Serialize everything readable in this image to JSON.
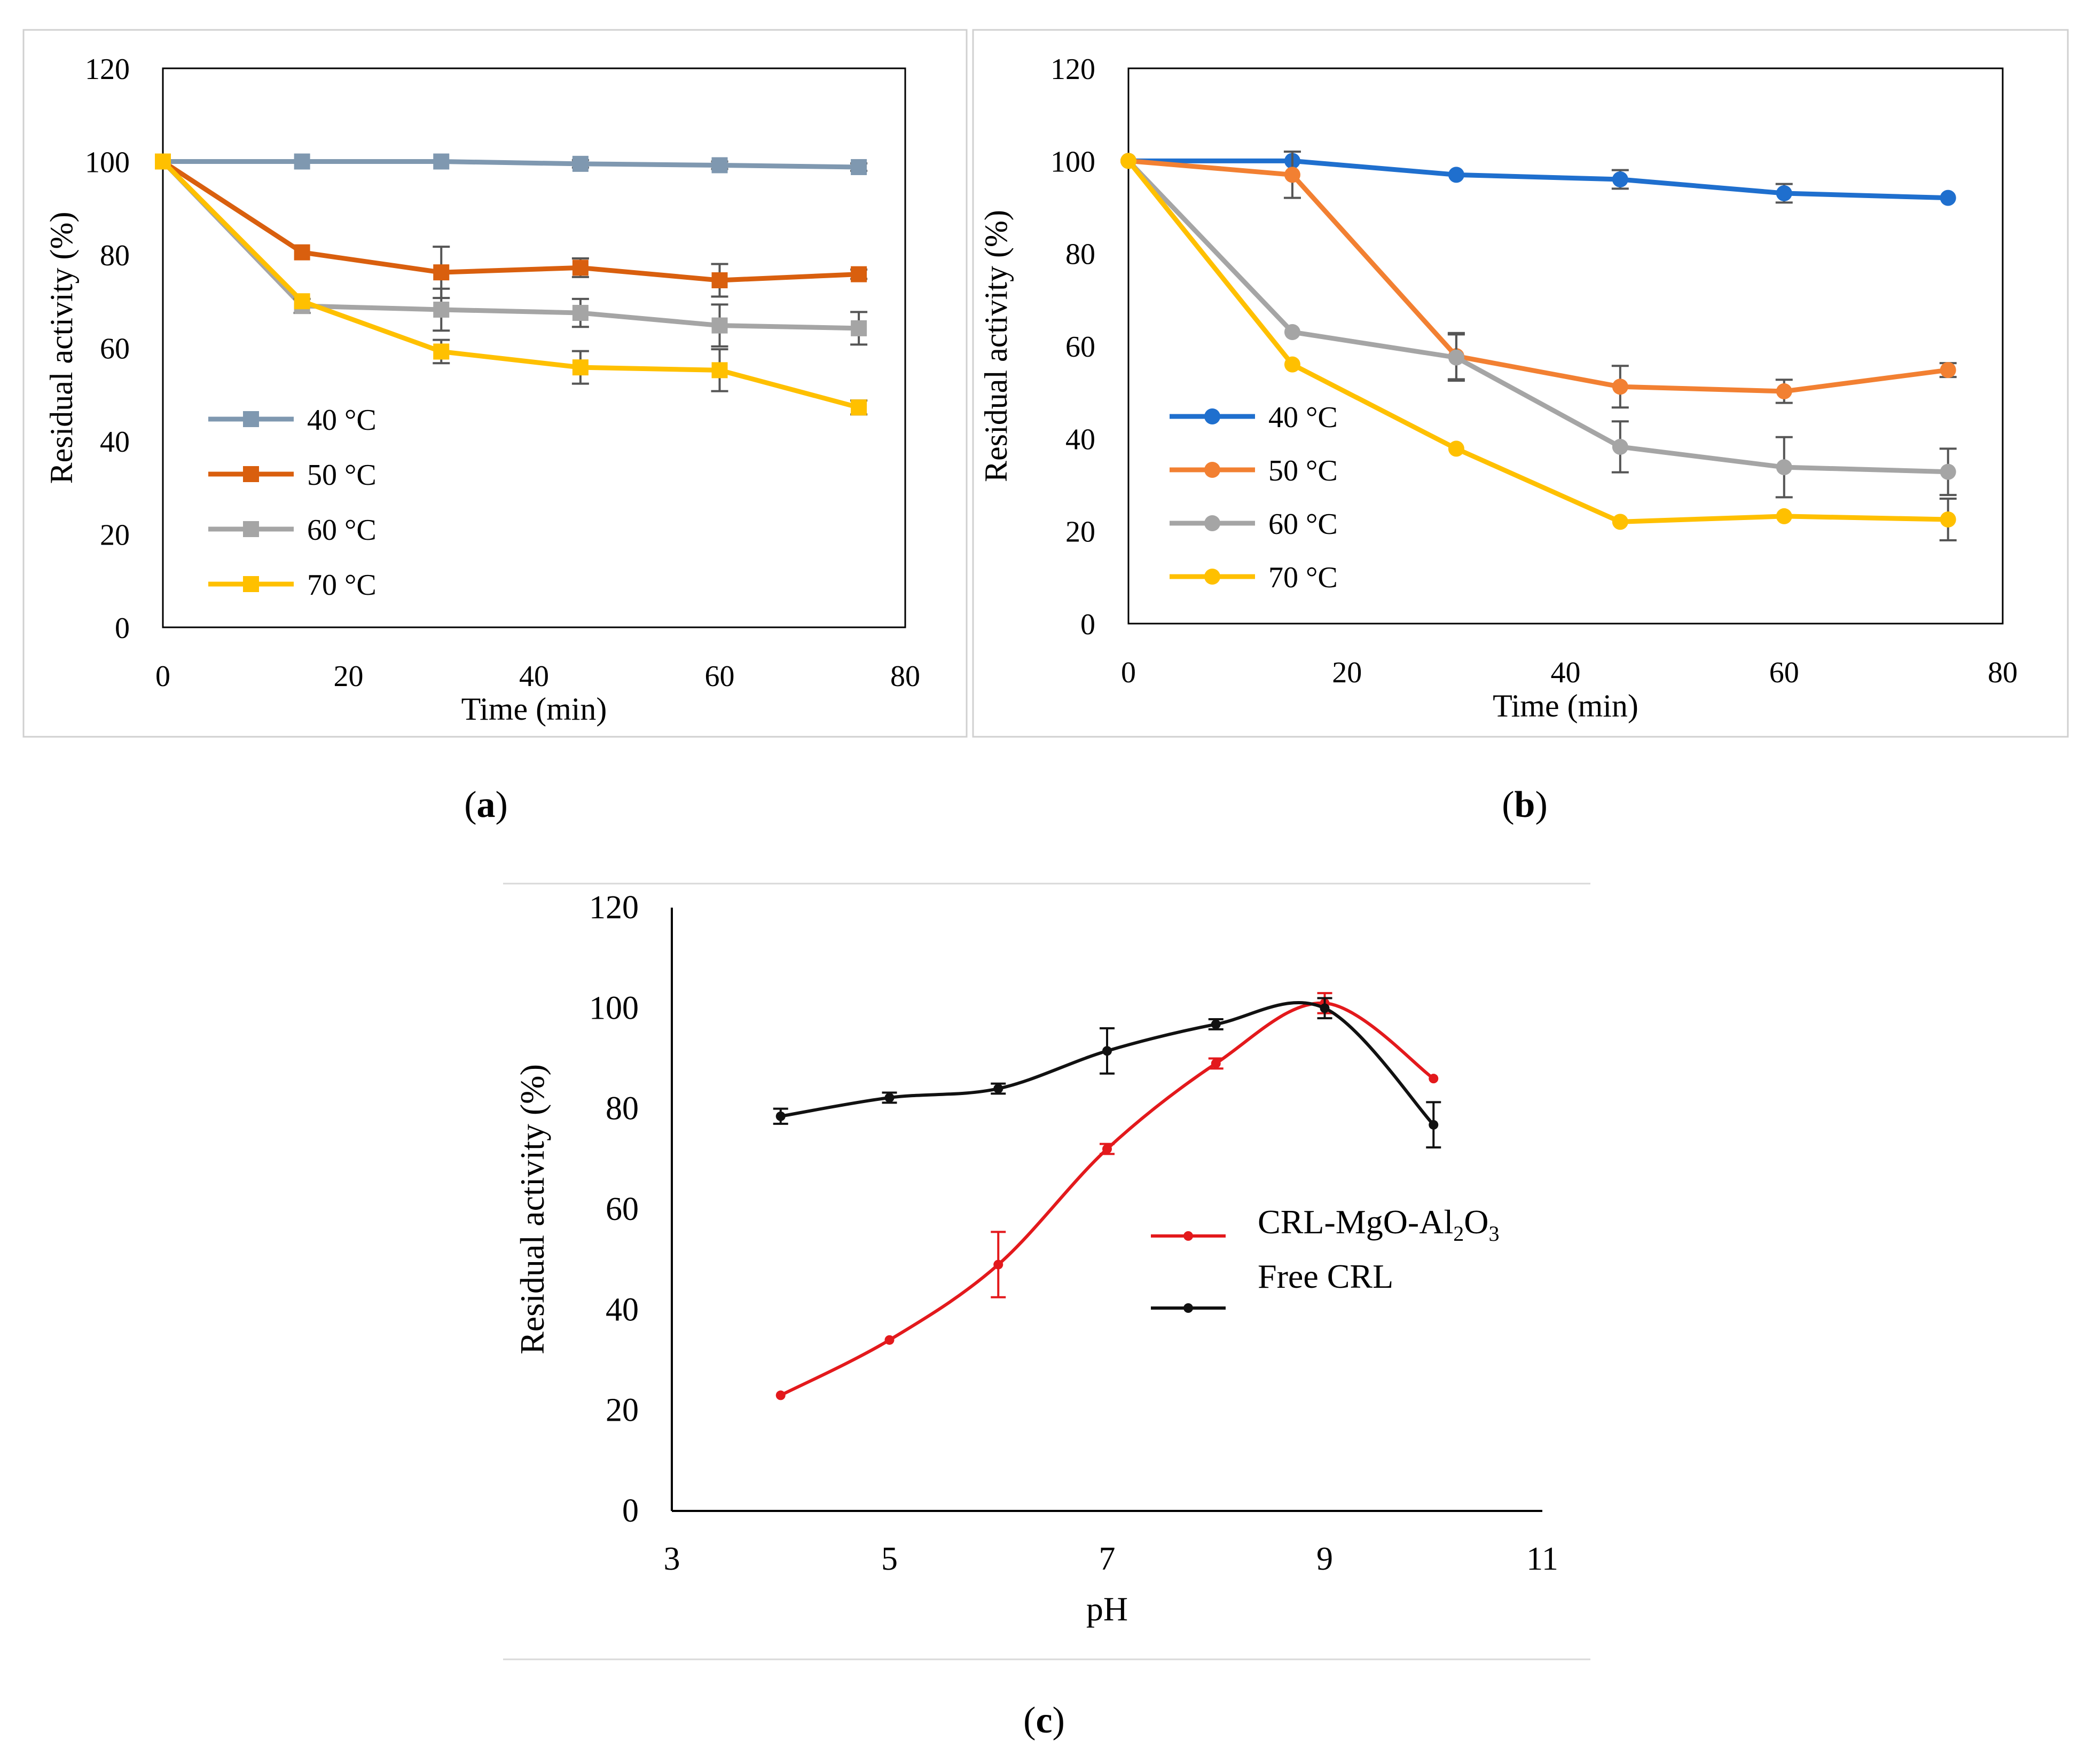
{
  "figure_labels": [
    "a",
    "b",
    "c"
  ],
  "chart_data": [
    {
      "id": "a",
      "type": "line",
      "marker": "square",
      "title": "",
      "xlabel": "Time (min)",
      "ylabel": "Residual activity (%)",
      "xlim": [
        0,
        80
      ],
      "ylim": [
        0,
        120
      ],
      "xticks": [
        0,
        20,
        40,
        60,
        80
      ],
      "yticks": [
        0,
        20,
        40,
        60,
        80,
        100,
        120
      ],
      "grid": false,
      "legend_position": "left",
      "x": [
        0,
        15,
        30,
        45,
        60,
        75
      ],
      "series": [
        {
          "name": "40 °C",
          "color": "#7f98b0",
          "values": [
            100,
            100,
            100,
            99.5,
            99.2,
            98.8
          ],
          "errors": [
            0,
            0,
            0,
            0.8,
            0.8,
            0.8
          ]
        },
        {
          "name": "50 °C",
          "color": "#d95f0e",
          "values": [
            100,
            80.5,
            76.2,
            77.2,
            74.5,
            75.8
          ],
          "errors": [
            0,
            0,
            5.5,
            2,
            3.5,
            1
          ]
        },
        {
          "name": "60 °C",
          "color": "#a5a5a5",
          "values": [
            100,
            69,
            68.2,
            67.5,
            64.8,
            64.2
          ],
          "errors": [
            0,
            1.5,
            4.5,
            3,
            4.5,
            3.5
          ]
        },
        {
          "name": "70 °C",
          "color": "#ffc000",
          "values": [
            100,
            70,
            59.2,
            55.8,
            55.2,
            47.2
          ],
          "errors": [
            0,
            0,
            2.5,
            3.5,
            4.5,
            1.5
          ]
        }
      ]
    },
    {
      "id": "b",
      "type": "line",
      "marker": "circle",
      "title": "",
      "xlabel": "Time (min)",
      "ylabel": "Residual activity (%)",
      "xlim": [
        0,
        80
      ],
      "ylim": [
        0,
        120
      ],
      "xticks": [
        0,
        20,
        40,
        60,
        80
      ],
      "yticks": [
        0,
        20,
        40,
        60,
        80,
        100,
        120
      ],
      "grid": false,
      "legend_position": "left",
      "x": [
        0,
        15,
        30,
        45,
        60,
        75
      ],
      "series": [
        {
          "name": "40 °C",
          "color": "#1f6fce",
          "values": [
            100,
            100,
            97,
            96,
            93,
            92
          ],
          "errors": [
            0,
            0,
            0,
            2,
            2,
            0
          ]
        },
        {
          "name": "50 °C",
          "color": "#f28032",
          "values": [
            100,
            97,
            57.8,
            51.2,
            50.2,
            54.8
          ],
          "errors": [
            0,
            5,
            5,
            4.5,
            2.5,
            1.5
          ]
        },
        {
          "name": "60 °C",
          "color": "#a5a5a5",
          "values": [
            100,
            63,
            57.5,
            38.2,
            33.8,
            32.8
          ],
          "errors": [
            0,
            0,
            5,
            5.5,
            6.5,
            5
          ]
        },
        {
          "name": "70 °C",
          "color": "#ffc000",
          "values": [
            100,
            56,
            37.8,
            22,
            23.2,
            22.5
          ],
          "errors": [
            0,
            0,
            0,
            0,
            0,
            4.5
          ]
        }
      ]
    },
    {
      "id": "c",
      "type": "line",
      "marker": "circle",
      "smooth": true,
      "title": "",
      "xlabel": "pH",
      "ylabel": "Residual activity (%)",
      "xlim": [
        3,
        11
      ],
      "ylim": [
        0,
        120
      ],
      "xticks": [
        3,
        5,
        7,
        9,
        11
      ],
      "yticks": [
        0,
        20,
        40,
        60,
        80,
        100,
        120
      ],
      "grid": false,
      "legend_position": "right",
      "x": [
        4,
        5,
        6,
        7,
        8,
        9,
        10
      ],
      "series": [
        {
          "name_parts": [
            "CRL-MgO-Al",
            "2",
            "O",
            "3"
          ],
          "color": "#e3191c",
          "values": [
            23,
            34,
            49,
            72,
            89,
            101,
            86
          ],
          "errors": [
            0,
            0,
            6.5,
            1,
            1,
            2,
            0
          ]
        },
        {
          "name": "Free CRL",
          "color": "#111111",
          "values": [
            78.5,
            82.2,
            84,
            91.5,
            96.8,
            100,
            76.8
          ],
          "errors": [
            1.5,
            1,
            1,
            4.5,
            1,
            2,
            4.5
          ]
        }
      ]
    }
  ]
}
